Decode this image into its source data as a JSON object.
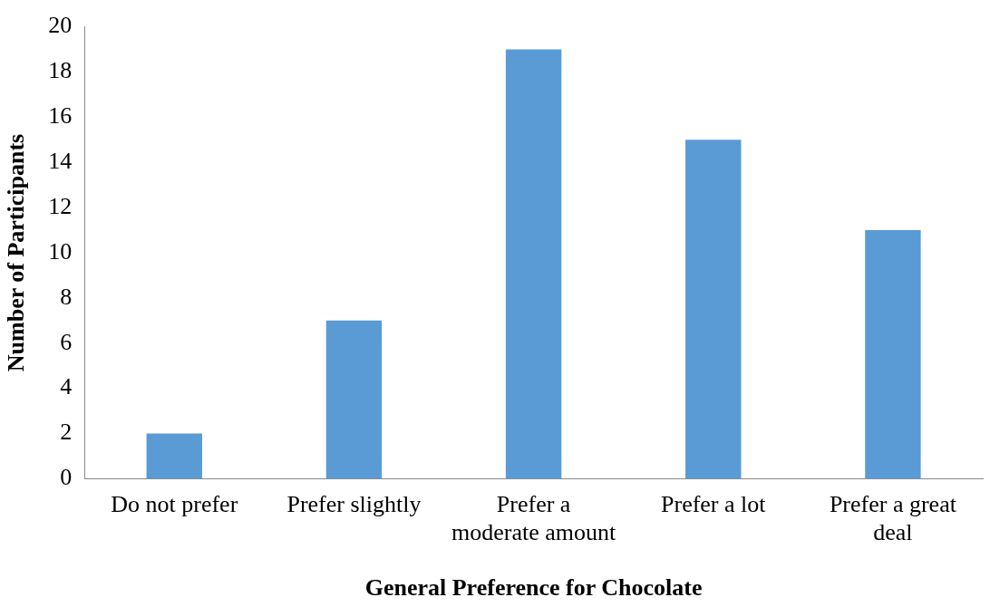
{
  "chart_data": {
    "type": "bar",
    "xlabel": "General Preference for Chocolate",
    "ylabel": "Number of Participants",
    "categories": [
      "Do not prefer",
      "Prefer slightly",
      "Prefer a moderate amount",
      "Prefer a lot",
      "Prefer a great deal"
    ],
    "values": [
      2,
      7,
      19,
      15,
      11
    ],
    "color": "#5b9bd5",
    "ylim": [
      0,
      20
    ],
    "yticks": [
      0,
      2,
      4,
      6,
      8,
      10,
      12,
      14,
      16,
      18,
      20
    ],
    "grid": false,
    "legend": false
  }
}
